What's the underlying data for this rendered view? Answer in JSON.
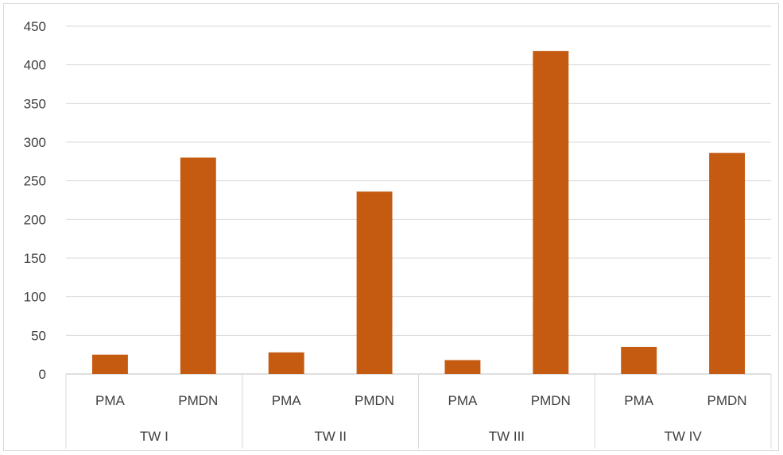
{
  "chart_data": {
    "type": "bar",
    "title": "",
    "xlabel": "",
    "ylabel": "",
    "ylim": [
      0,
      450
    ],
    "yticks": [
      0,
      50,
      100,
      150,
      200,
      250,
      300,
      350,
      400,
      450
    ],
    "grid": true,
    "legend": "none",
    "bar_color": "#C55A11",
    "groups": [
      {
        "name": "TW I",
        "categories": [
          "PMA",
          "PMDN"
        ],
        "values": [
          25,
          280
        ]
      },
      {
        "name": "TW II",
        "categories": [
          "PMA",
          "PMDN"
        ],
        "values": [
          28,
          236
        ]
      },
      {
        "name": "TW III",
        "categories": [
          "PMA",
          "PMDN"
        ],
        "values": [
          18,
          418
        ]
      },
      {
        "name": "TW IV",
        "categories": [
          "PMA",
          "PMDN"
        ],
        "values": [
          35,
          286
        ]
      }
    ]
  }
}
